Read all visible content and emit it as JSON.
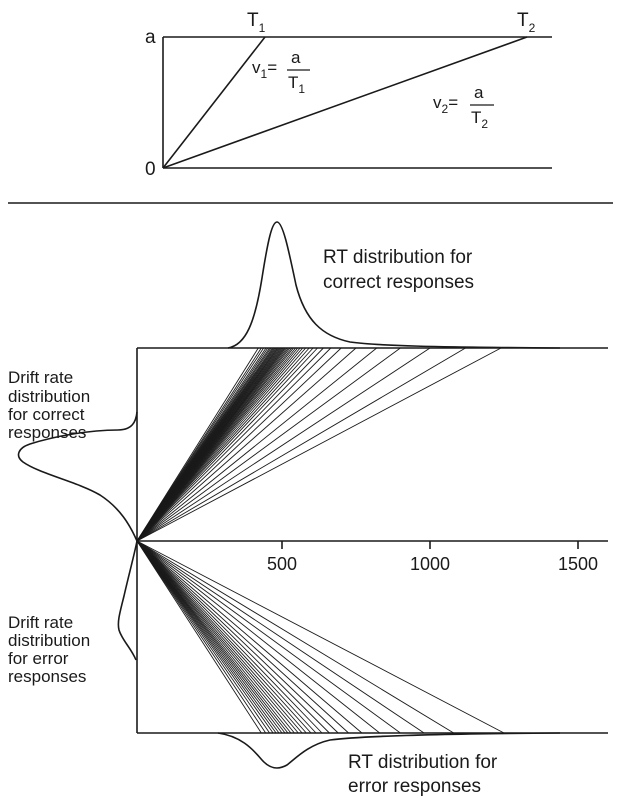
{
  "top_panel": {
    "y_top_label": "a",
    "y_bottom_label": "0",
    "t1": {
      "letter": "T",
      "sub": "1"
    },
    "t2": {
      "letter": "T",
      "sub": "2"
    },
    "v1": {
      "lhs": "v",
      "lhs_sub": "1",
      "eq": "=",
      "num": "a",
      "den": "T",
      "den_sub": "1"
    },
    "v2": {
      "lhs": "v",
      "lhs_sub": "2",
      "eq": "=",
      "num": "a",
      "den": "T",
      "den_sub": "2"
    }
  },
  "bottom_panel": {
    "rt_correct_label": [
      "RT distribution for",
      "correct responses"
    ],
    "rt_error_label": [
      "RT distribution for",
      "error responses"
    ],
    "drift_correct_label": [
      "Drift rate",
      "distribution",
      "for correct",
      "responses"
    ],
    "drift_error_label": [
      "Drift rate",
      "distribution",
      "for error",
      "responses"
    ],
    "x_ticks": [
      "500",
      "1000",
      "1500"
    ],
    "x_tick_values": [
      500,
      1000,
      1500
    ],
    "correct_path_end_times": [
      420,
      430,
      438,
      446,
      452,
      458,
      463,
      468,
      472,
      476,
      480,
      484,
      488,
      492,
      496,
      500,
      504,
      508,
      512,
      517,
      522,
      527,
      533,
      539,
      546,
      553,
      561,
      570,
      580,
      592,
      605,
      620,
      640,
      665,
      700,
      750,
      820,
      900,
      1000,
      1120,
      1240
    ],
    "error_path_end_times": [
      430,
      445,
      458,
      470,
      480,
      490,
      500,
      510,
      520,
      530,
      542,
      555,
      568,
      582,
      598,
      615,
      635,
      660,
      690,
      725,
      770,
      830,
      900,
      980,
      1080,
      1250
    ]
  }
}
